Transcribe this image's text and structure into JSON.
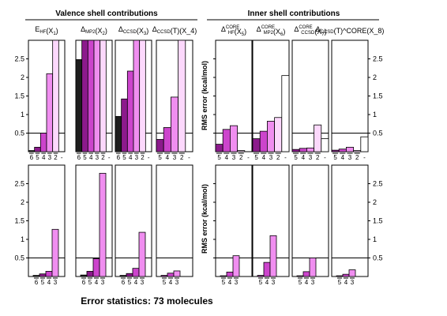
{
  "figure": {
    "group_titles": [
      "Valence shell contributions",
      "Inner shell contributions"
    ],
    "footer": "Error statistics: 73 molecules",
    "yaxis_label": "RMS error (kcal/mol)"
  },
  "chart_data": {
    "type": "bar",
    "ylim": [
      0,
      3.0
    ],
    "yticks": [
      0.5,
      1,
      1.5,
      2,
      2.5
    ],
    "reference_line": 0.5,
    "colors": {
      "6": "#1e1e1e",
      "5": "#8c1a8c",
      "4": "#cc44cc",
      "3": "#f08ef0",
      "2": "#fcd8fc"
    },
    "top_row": [
      {
        "title": "E_HF(X_1)",
        "categories": [
          "6",
          "5",
          "4",
          "3",
          "2",
          "-"
        ],
        "values": [
          0.03,
          0.12,
          0.5,
          2.1,
          3.0,
          0.0
        ]
      },
      {
        "title": "Δ_MP2(X_2)",
        "categories": [
          "6",
          "5",
          "4",
          "3",
          "2",
          "-"
        ],
        "values": [
          2.48,
          3.0,
          3.0,
          3.0,
          3.0,
          0.0
        ]
      },
      {
        "title": "Δ_CCSD(X_3)",
        "categories": [
          "6",
          "5",
          "4",
          "3",
          "2",
          "-"
        ],
        "values": [
          0.95,
          1.42,
          2.17,
          3.0,
          3.0,
          0.0
        ]
      },
      {
        "title": "Δ_CCSD(T)(X_4)",
        "categories": [
          "5",
          "4",
          "3",
          "2",
          "-"
        ],
        "values": [
          0.33,
          0.65,
          1.47,
          3.0,
          0.0
        ]
      },
      {
        "title": "Δ_HF^CORE(X_5)",
        "categories": [
          "5",
          "4",
          "3",
          "2",
          "-"
        ],
        "values": [
          0.2,
          0.6,
          0.7,
          0.03,
          0.0
        ]
      },
      {
        "title": "Δ_MP2^CORE(X_6)",
        "categories": [
          "5",
          "4",
          "3",
          "2",
          "-"
        ],
        "values": [
          0.35,
          0.55,
          0.82,
          0.92,
          2.05
        ]
      },
      {
        "title": "Δ_CCSD^CORE(X_7)",
        "categories": [
          "5",
          "4",
          "3",
          "2",
          "-"
        ],
        "values": [
          0.06,
          0.09,
          0.1,
          0.72,
          0.35
        ]
      },
      {
        "title": "Δ_CCSD(T)^CORE(X_8)",
        "categories": [
          "5",
          "4",
          "3",
          "2",
          "-"
        ],
        "values": [
          0.04,
          0.07,
          0.12,
          0.03,
          0.4
        ]
      }
    ],
    "bottom_row": [
      {
        "categories": [
          "6",
          "5",
          "4",
          "3"
        ],
        "values": [
          0.03,
          0.07,
          0.14,
          1.27
        ]
      },
      {
        "categories": [
          "6",
          "5",
          "4",
          "3"
        ],
        "values": [
          0.04,
          0.14,
          0.48,
          2.78
        ]
      },
      {
        "categories": [
          "6",
          "5",
          "4",
          "3"
        ],
        "values": [
          0.03,
          0.08,
          0.22,
          1.19
        ]
      },
      {
        "categories": [
          "5",
          "4",
          "3"
        ],
        "values": [
          0.03,
          0.09,
          0.15
        ]
      },
      {
        "categories": [
          "5",
          "4",
          "3"
        ],
        "values": [
          0.02,
          0.12,
          0.56
        ]
      },
      {
        "categories": [
          "5",
          "4",
          "3"
        ],
        "values": [
          0.03,
          0.38,
          1.1
        ]
      },
      {
        "categories": [
          "5",
          "4",
          "3"
        ],
        "values": [
          0.02,
          0.13,
          0.5
        ]
      },
      {
        "categories": [
          "5",
          "4",
          "3"
        ],
        "values": [
          0.02,
          0.06,
          0.18
        ]
      }
    ]
  }
}
